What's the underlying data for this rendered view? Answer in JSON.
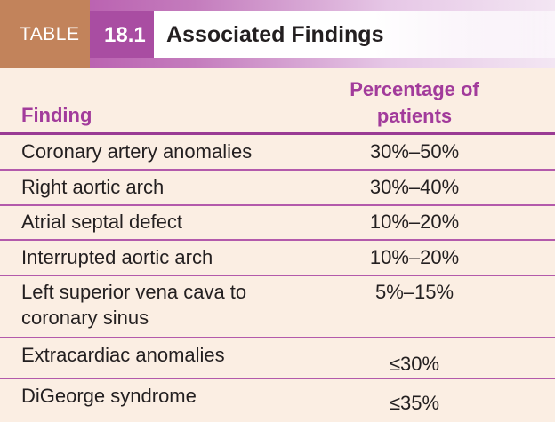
{
  "table": {
    "tag_label": "TABLE",
    "number": "18.1",
    "title": "Associated Findings"
  },
  "columns": {
    "finding": "Finding",
    "percentage_line1": "Percentage of",
    "percentage_line2": "patients"
  },
  "rows": [
    {
      "finding": "Coronary artery anomalies",
      "percentage": "30%–50%"
    },
    {
      "finding": "Right aortic arch",
      "percentage": "30%–40%"
    },
    {
      "finding": "Atrial septal defect",
      "percentage": "10%–20%"
    },
    {
      "finding": "Interrupted aortic arch",
      "percentage": "10%–20%"
    },
    {
      "finding_line1": "Left superior vena cava to",
      "finding_line2": "coronary sinus",
      "percentage": "5%–15%"
    },
    {
      "finding": "Extracardiac anomalies",
      "percentage": "≤30%"
    },
    {
      "finding": "DiGeorge syndrome",
      "percentage": "≤35%"
    }
  ],
  "colors": {
    "accent": "#a94da2",
    "tag_tan": "#c2835b",
    "background": "#fbeee3"
  }
}
